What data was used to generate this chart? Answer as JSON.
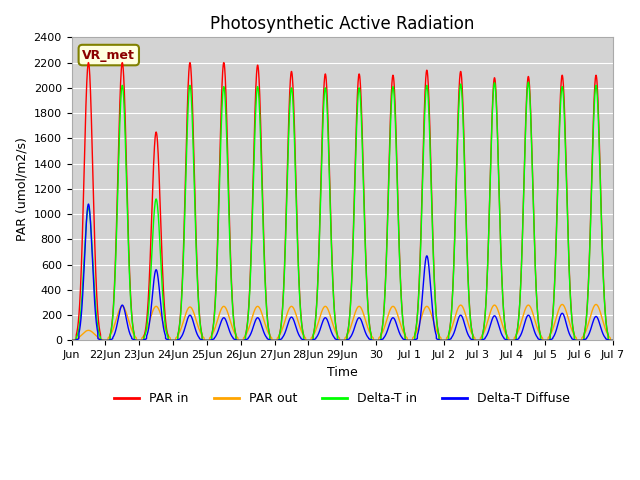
{
  "title": "Photosynthetic Active Radiation",
  "ylabel": "PAR (umol/m2/s)",
  "xlabel": "Time",
  "annotation": "VR_met",
  "ylim": [
    0,
    2400
  ],
  "plot_bg_color": "#d3d3d3",
  "colors": [
    "red",
    "orange",
    "lime",
    "blue"
  ],
  "x_tick_labels": [
    "Jun",
    "22Jun",
    "23Jun",
    "24Jun",
    "25Jun",
    "26Jun",
    "27Jun",
    "28Jun",
    "29Jun",
    "30",
    "Jul 1",
    "Jul 2",
    "Jul 3",
    "Jul 4",
    "Jul 5",
    "Jul 6",
    "Jul 7"
  ],
  "yticks": [
    0,
    200,
    400,
    600,
    800,
    1000,
    1200,
    1400,
    1600,
    1800,
    2000,
    2200,
    2400
  ],
  "num_days": 16,
  "par_in_peaks": [
    2200,
    2200,
    1650,
    2200,
    2200,
    2180,
    2130,
    2110,
    2110,
    2100,
    2140,
    2130,
    2080,
    2090,
    2100,
    2100
  ],
  "par_out_peaks": [
    80,
    270,
    270,
    265,
    270,
    270,
    270,
    270,
    270,
    270,
    270,
    280,
    280,
    280,
    285,
    285
  ],
  "delta_t_in_peaks": [
    1050,
    2020,
    1120,
    2020,
    2010,
    2010,
    2000,
    2000,
    2000,
    2010,
    2020,
    2030,
    2040,
    2045,
    2010,
    2020
  ],
  "delta_t_diff_peaks": [
    1000,
    200,
    480,
    120,
    100,
    100,
    105,
    100,
    100,
    100,
    590,
    120,
    115,
    120,
    135,
    110
  ],
  "title_fontsize": 12,
  "axis_label_fontsize": 9,
  "tick_fontsize": 8
}
